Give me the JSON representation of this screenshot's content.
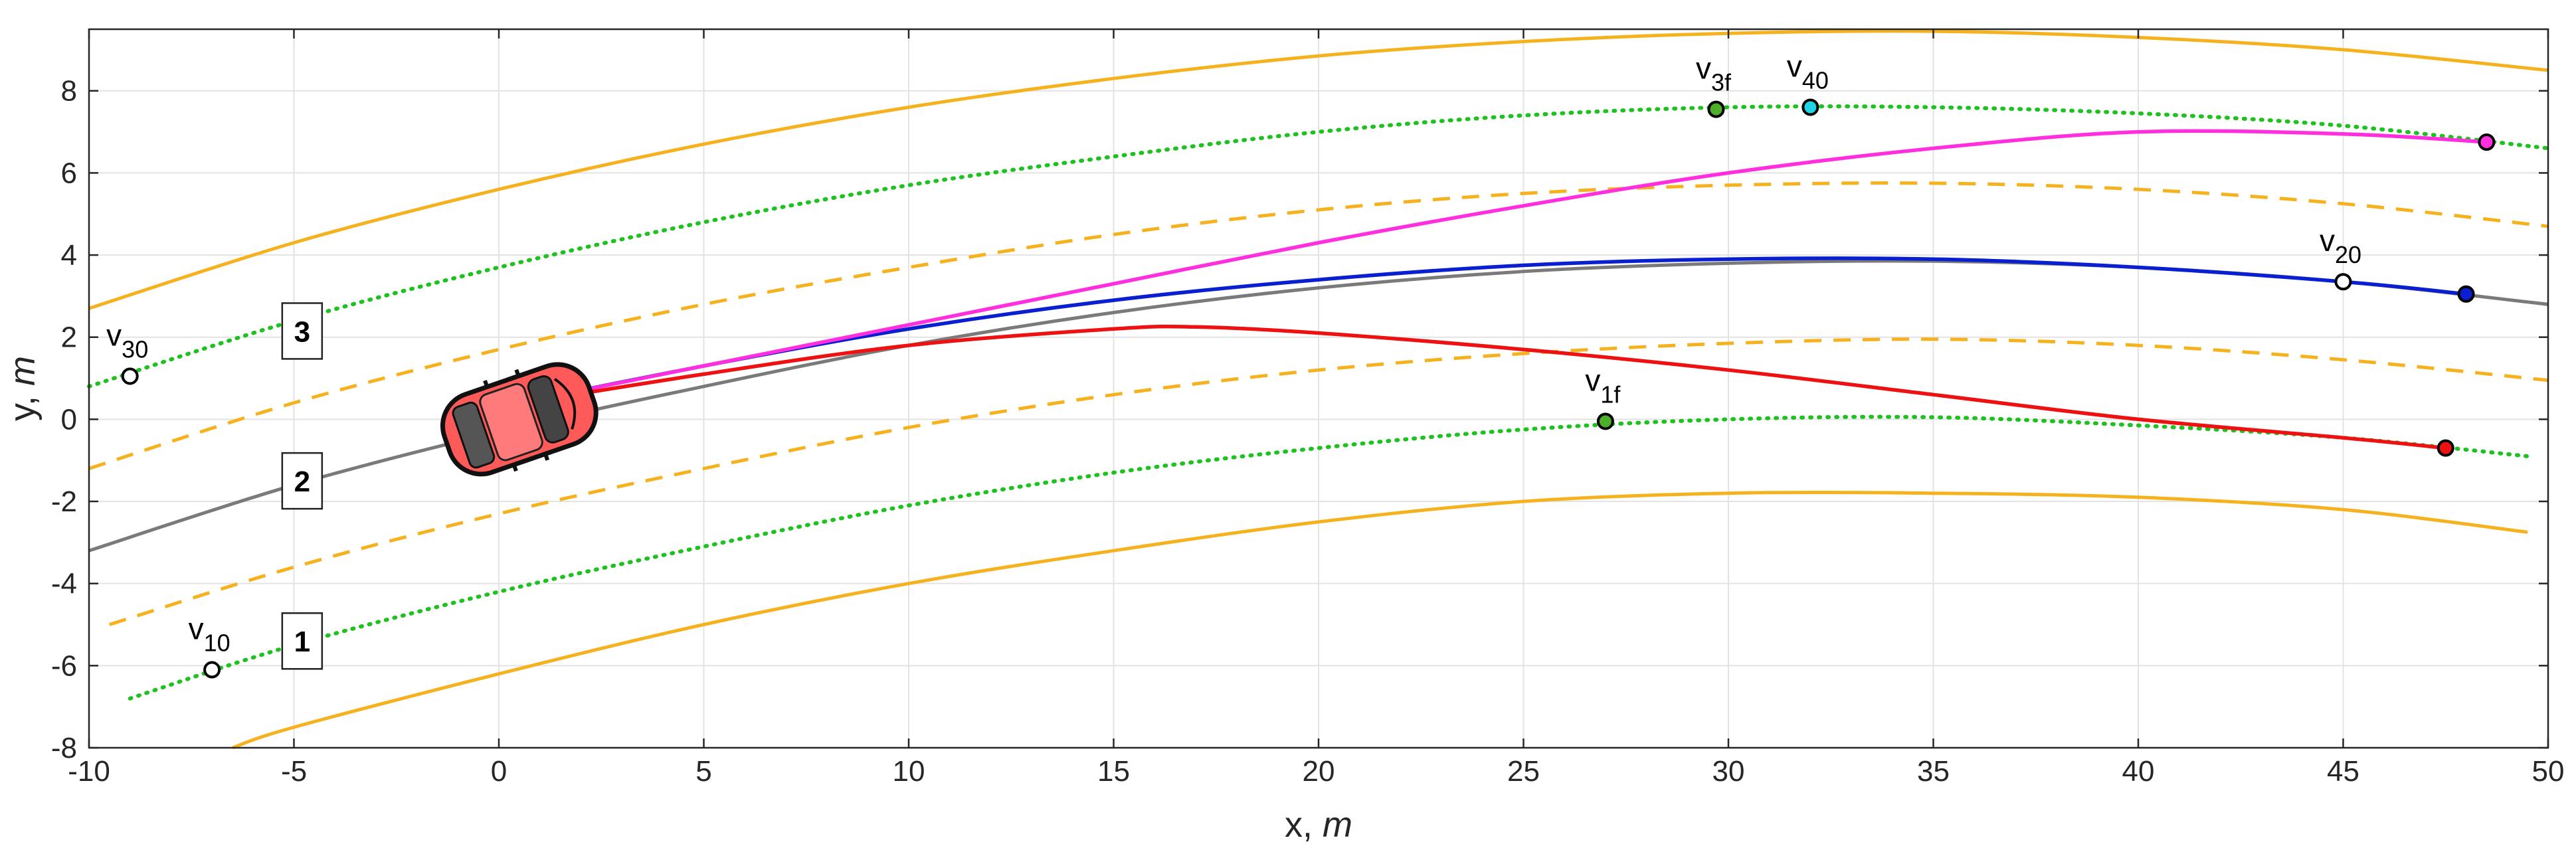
{
  "chart_data": {
    "type": "line",
    "xlabel": {
      "main": "x, ",
      "unit": "m"
    },
    "ylabel": {
      "main": "y, ",
      "unit": "m"
    },
    "xlim": [
      -10,
      50
    ],
    "ylim": [
      -8,
      9.5
    ],
    "xticks": [
      -10,
      -5,
      0,
      5,
      10,
      15,
      20,
      25,
      30,
      35,
      40,
      45,
      50
    ],
    "yticks": [
      -8,
      -6,
      -4,
      -2,
      0,
      2,
      4,
      6,
      8
    ],
    "grid": true,
    "series": [
      {
        "name": "road-edge-upper",
        "style": "solid-orange",
        "x": [
          -10,
          -5,
          0,
          5,
          10,
          15,
          20,
          25,
          30,
          35,
          40,
          45,
          50
        ],
        "y": [
          2.7,
          4.3,
          5.6,
          6.7,
          7.6,
          8.3,
          8.85,
          9.2,
          9.4,
          9.45,
          9.3,
          9.0,
          8.5
        ]
      },
      {
        "name": "lane-3-centerline",
        "style": "dotted-green",
        "x": [
          -10,
          -5,
          0,
          5,
          10,
          15,
          20,
          25,
          30,
          35,
          40,
          45,
          50
        ],
        "y": [
          0.8,
          2.4,
          3.7,
          4.8,
          5.7,
          6.4,
          7.0,
          7.4,
          7.6,
          7.6,
          7.45,
          7.15,
          6.6
        ]
      },
      {
        "name": "lane-divider-upper",
        "style": "dashed-orange",
        "x": [
          -10,
          -5,
          0,
          5,
          10,
          15,
          20,
          25,
          30,
          35,
          40,
          45,
          50
        ],
        "y": [
          -1.2,
          0.4,
          1.7,
          2.8,
          3.7,
          4.5,
          5.1,
          5.5,
          5.7,
          5.75,
          5.6,
          5.25,
          4.7
        ]
      },
      {
        "name": "lane-2-centerline",
        "style": "solid-gray",
        "x": [
          -10,
          -5,
          0,
          5,
          10,
          15,
          20,
          25,
          30,
          35,
          40,
          45,
          50
        ],
        "y": [
          -3.2,
          -1.6,
          -0.3,
          0.8,
          1.8,
          2.6,
          3.2,
          3.6,
          3.8,
          3.85,
          3.7,
          3.35,
          2.8
        ]
      },
      {
        "name": "lane-divider-lower",
        "style": "dashed-orange",
        "x": [
          -9.5,
          -5,
          0,
          5,
          10,
          15,
          20,
          25,
          30,
          35,
          40,
          45,
          50
        ],
        "y": [
          -5.0,
          -3.6,
          -2.3,
          -1.2,
          -0.2,
          0.6,
          1.2,
          1.6,
          1.85,
          1.95,
          1.8,
          1.45,
          0.95
        ]
      },
      {
        "name": "lane-1-centerline",
        "style": "dotted-green",
        "x": [
          -9,
          -5,
          0,
          5,
          10,
          15,
          20,
          25,
          30,
          35,
          40,
          45,
          49.5
        ],
        "y": [
          -6.8,
          -5.5,
          -4.2,
          -3.1,
          -2.1,
          -1.3,
          -0.7,
          -0.25,
          0.0,
          0.05,
          -0.15,
          -0.45,
          -0.9
        ]
      },
      {
        "name": "road-edge-lower",
        "style": "solid-orange",
        "x": [
          -6.5,
          -5,
          0,
          5,
          10,
          15,
          20,
          25,
          30,
          35,
          40,
          45,
          49.5
        ],
        "y": [
          -8.0,
          -7.5,
          -6.2,
          -5.0,
          -4.0,
          -3.2,
          -2.5,
          -2.0,
          -1.8,
          -1.8,
          -1.9,
          -2.2,
          -2.75
        ]
      },
      {
        "name": "trajectory-to-v20",
        "style": "solid-blue",
        "x": [
          0,
          5,
          10,
          15,
          20,
          25,
          30,
          35,
          40,
          45,
          48
        ],
        "y": [
          0.3,
          1.3,
          2.2,
          2.9,
          3.4,
          3.75,
          3.9,
          3.9,
          3.7,
          3.35,
          3.05
        ]
      },
      {
        "name": "trajectory-to-v30",
        "style": "solid-magenta",
        "x": [
          0,
          5,
          10,
          15,
          20,
          25,
          30,
          35,
          40,
          45,
          48.5
        ],
        "y": [
          0.3,
          1.3,
          2.3,
          3.3,
          4.3,
          5.2,
          6.0,
          6.6,
          7.0,
          6.95,
          6.75
        ]
      },
      {
        "name": "trajectory-to-v10",
        "style": "solid-red",
        "x": [
          0,
          5,
          10,
          15,
          17,
          20,
          25,
          30,
          35,
          40,
          45,
          47.5
        ],
        "y": [
          0.3,
          1.1,
          1.8,
          2.2,
          2.25,
          2.1,
          1.7,
          1.2,
          0.6,
          0.0,
          -0.45,
          -0.7
        ]
      }
    ],
    "points": [
      {
        "id": "v10",
        "label": "v",
        "sub": "10",
        "x": -7,
        "y": -6.1,
        "fill": "#ffffff"
      },
      {
        "id": "v30",
        "label": "v",
        "sub": "30",
        "x": -9,
        "y": 1.05,
        "fill": "#ffffff"
      },
      {
        "id": "v20",
        "label": "v",
        "sub": "20",
        "x": 45,
        "y": 3.35,
        "fill": "#ffffff"
      },
      {
        "id": "v1f",
        "label": "v",
        "sub": "1f",
        "x": 27,
        "y": -0.05,
        "fill": "#4caf2a"
      },
      {
        "id": "v3f",
        "label": "v",
        "sub": "3f",
        "x": 29.7,
        "y": 7.55,
        "fill": "#4caf2a"
      },
      {
        "id": "v40",
        "label": "v",
        "sub": "40",
        "x": 32,
        "y": 7.6,
        "fill": "#22d3e6"
      },
      {
        "id": "end-blue",
        "label": "",
        "sub": "",
        "x": 48,
        "y": 3.05,
        "fill": "#0a1fd0"
      },
      {
        "id": "end-magenta",
        "label": "",
        "sub": "",
        "x": 48.5,
        "y": 6.75,
        "fill": "#ff2fe0"
      },
      {
        "id": "end-red",
        "label": "",
        "sub": "",
        "x": 47.5,
        "y": -0.7,
        "fill": "#ee1111"
      }
    ],
    "lane_labels": [
      {
        "text": "3",
        "x": -4.8,
        "y": 2.15
      },
      {
        "text": "2",
        "x": -4.8,
        "y": -1.5
      },
      {
        "text": "1",
        "x": -4.8,
        "y": -5.4
      }
    ],
    "vehicle": {
      "x": 0.5,
      "y": 0.0,
      "heading_deg": 19,
      "color": "#ff5a5a"
    },
    "colors": {
      "road_edge": "#f6b21e",
      "lane_divider": "#f6b21e",
      "lane_center_green": "#1ec21e",
      "centerline_gray": "#7a7a7a",
      "traj_blue": "#0a1fd0",
      "traj_magenta": "#ff2fe0",
      "traj_red": "#ee1111"
    }
  }
}
